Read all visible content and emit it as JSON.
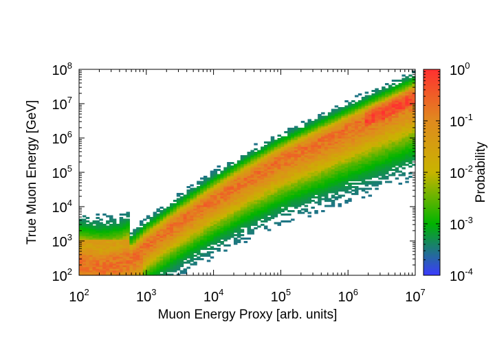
{
  "chart_data": {
    "type": "heatmap",
    "title": "",
    "xlabel": "Muon Energy Proxy [arb. units]",
    "ylabel": "True Muon Energy [GeV]",
    "x_scale": "log",
    "y_scale": "log",
    "xlim": [
      100,
      10000000
    ],
    "ylim": [
      100,
      100000000
    ],
    "x_ticks": [
      {
        "base": "10",
        "exp": "2"
      },
      {
        "base": "10",
        "exp": "3"
      },
      {
        "base": "10",
        "exp": "4"
      },
      {
        "base": "10",
        "exp": "5"
      },
      {
        "base": "10",
        "exp": "6"
      },
      {
        "base": "10",
        "exp": "7"
      }
    ],
    "y_ticks": [
      {
        "base": "10",
        "exp": "2"
      },
      {
        "base": "10",
        "exp": "3"
      },
      {
        "base": "10",
        "exp": "4"
      },
      {
        "base": "10",
        "exp": "5"
      },
      {
        "base": "10",
        "exp": "6"
      },
      {
        "base": "10",
        "exp": "7"
      },
      {
        "base": "10",
        "exp": "8"
      }
    ],
    "colorbar": {
      "label": "Probability",
      "scale": "log",
      "range": [
        0.0001,
        1
      ],
      "ticks": [
        {
          "base": "10",
          "exp": "0"
        },
        {
          "base": "10",
          "exp": "-1"
        },
        {
          "base": "10",
          "exp": "-2"
        },
        {
          "base": "10",
          "exp": "-3"
        },
        {
          "base": "10",
          "exp": "-4"
        }
      ],
      "colors": [
        "#3b3bff",
        "#00b400",
        "#c8b400",
        "#e08a1e",
        "#ff3030"
      ]
    },
    "grid": false,
    "legend": "none",
    "ridge": {
      "log_proxy": [
        2.0,
        2.3,
        2.6,
        2.8,
        3.0,
        3.5,
        4.0,
        4.5,
        5.0,
        5.5,
        6.0,
        6.5,
        7.0
      ],
      "log_true_energy": [
        2.4,
        2.3,
        2.35,
        2.55,
        2.9,
        3.6,
        4.25,
        4.85,
        5.4,
        5.85,
        6.3,
        6.75,
        7.2
      ]
    }
  }
}
